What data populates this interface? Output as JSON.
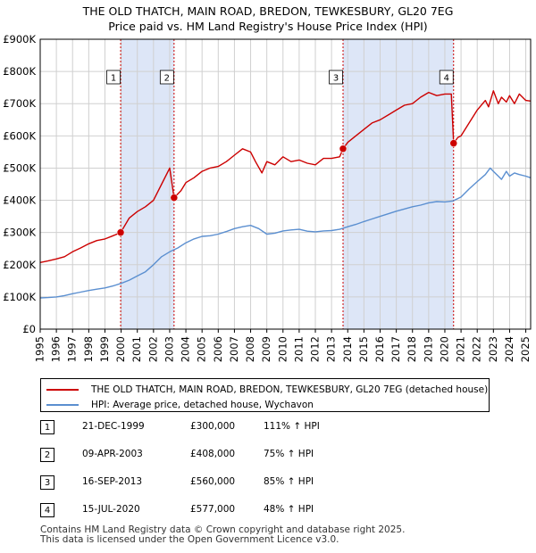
{
  "title_line1": "THE OLD THATCH, MAIN ROAD, BREDON, TEWKESBURY, GL20 7EG",
  "title_line2": "Price paid vs. HM Land Registry's House Price Index (HPI)",
  "colors": {
    "property": "#cc0000",
    "hpi": "#5b8fd0",
    "shade": "#dde6f7",
    "marker": "#cc0000"
  },
  "legend": {
    "property_label": "THE OLD THATCH, MAIN ROAD, BREDON, TEWKESBURY, GL20 7EG (detached house)",
    "hpi_label": "HPI: Average price, detached house, Wychavon"
  },
  "transactions": [
    {
      "num": "1",
      "date": "21-DEC-1999",
      "price": "£300,000",
      "hpi": "111% ↑ HPI"
    },
    {
      "num": "2",
      "date": "09-APR-2003",
      "price": "£408,000",
      "hpi": "75% ↑ HPI"
    },
    {
      "num": "3",
      "date": "16-SEP-2013",
      "price": "£560,000",
      "hpi": "85% ↑ HPI"
    },
    {
      "num": "4",
      "date": "15-JUL-2020",
      "price": "£577,000",
      "hpi": "48% ↑ HPI"
    }
  ],
  "footer_line1": "Contains HM Land Registry data © Crown copyright and database right 2025.",
  "footer_line2": "This data is licensed under the Open Government Licence v3.0.",
  "chart_data": {
    "type": "line",
    "title": "THE OLD THATCH, MAIN ROAD, BREDON, TEWKESBURY, GL20 7EG — Price paid vs. HM Land Registry's House Price Index (HPI)",
    "xlabel": "",
    "ylabel": "",
    "xlim": [
      1995,
      2025.3
    ],
    "ylim": [
      0,
      900000
    ],
    "grid": true,
    "legend_position": "below",
    "y_ticks": [
      0,
      100000,
      200000,
      300000,
      400000,
      500000,
      600000,
      700000,
      800000,
      900000
    ],
    "y_tick_labels": [
      "£0",
      "£100K",
      "£200K",
      "£300K",
      "£400K",
      "£500K",
      "£600K",
      "£700K",
      "£800K",
      "£900K"
    ],
    "x_ticks": [
      1995,
      1996,
      1997,
      1998,
      1999,
      2000,
      2001,
      2002,
      2003,
      2004,
      2005,
      2006,
      2007,
      2008,
      2009,
      2010,
      2011,
      2012,
      2013,
      2014,
      2015,
      2016,
      2017,
      2018,
      2019,
      2020,
      2021,
      2022,
      2023,
      2024,
      2025
    ],
    "shaded_ranges": [
      [
        1999.97,
        2003.27
      ],
      [
        2013.71,
        2020.54
      ]
    ],
    "sale_markers": [
      {
        "label": "1",
        "x": 1999.97,
        "y": 300000
      },
      {
        "label": "2",
        "x": 2003.27,
        "y": 408000
      },
      {
        "label": "3",
        "x": 2013.71,
        "y": 560000
      },
      {
        "label": "4",
        "x": 2020.54,
        "y": 577000
      }
    ],
    "series": [
      {
        "name": "THE OLD THATCH, MAIN ROAD, BREDON, TEWKESBURY, GL20 7EG (detached house)",
        "x": [
          1995.0,
          1995.5,
          1996.0,
          1996.5,
          1997.0,
          1997.5,
          1998.0,
          1998.5,
          1999.0,
          1999.5,
          1999.97,
          2000.5,
          2001.0,
          2001.5,
          2002.0,
          2002.5,
          2003.0,
          2003.27,
          2003.7,
          2004.0,
          2004.5,
          2005.0,
          2005.5,
          2006.0,
          2006.5,
          2007.0,
          2007.5,
          2008.0,
          2008.3,
          2008.7,
          2009.0,
          2009.5,
          2010.0,
          2010.5,
          2011.0,
          2011.5,
          2012.0,
          2012.5,
          2013.0,
          2013.5,
          2013.71,
          2014.0,
          2014.5,
          2015.0,
          2015.5,
          2016.0,
          2016.5,
          2017.0,
          2017.5,
          2018.0,
          2018.5,
          2019.0,
          2019.5,
          2020.0,
          2020.4,
          2020.54,
          2020.8,
          2021.0,
          2021.5,
          2022.0,
          2022.5,
          2022.7,
          2023.0,
          2023.3,
          2023.5,
          2023.8,
          2024.0,
          2024.3,
          2024.6,
          2025.0,
          2025.3
        ],
        "values": [
          207000,
          212000,
          218000,
          225000,
          240000,
          252000,
          265000,
          275000,
          280000,
          290000,
          300000,
          345000,
          365000,
          380000,
          400000,
          450000,
          500000,
          408000,
          430000,
          455000,
          470000,
          490000,
          500000,
          505000,
          520000,
          540000,
          560000,
          550000,
          520000,
          485000,
          520000,
          510000,
          535000,
          520000,
          525000,
          515000,
          510000,
          530000,
          530000,
          535000,
          560000,
          580000,
          600000,
          620000,
          640000,
          650000,
          665000,
          680000,
          695000,
          700000,
          720000,
          735000,
          725000,
          730000,
          730000,
          577000,
          595000,
          600000,
          640000,
          680000,
          710000,
          690000,
          740000,
          700000,
          720000,
          705000,
          725000,
          700000,
          730000,
          710000,
          708000
        ]
      },
      {
        "name": "HPI: Average price, detached house, Wychavon",
        "x": [
          1995.0,
          1995.5,
          1996.0,
          1996.5,
          1997.0,
          1997.5,
          1998.0,
          1998.5,
          1999.0,
          1999.5,
          2000.0,
          2000.5,
          2001.0,
          2001.5,
          2002.0,
          2002.5,
          2003.0,
          2003.5,
          2004.0,
          2004.5,
          2005.0,
          2005.5,
          2006.0,
          2006.5,
          2007.0,
          2007.5,
          2008.0,
          2008.5,
          2009.0,
          2009.5,
          2010.0,
          2010.5,
          2011.0,
          2011.5,
          2012.0,
          2012.5,
          2013.0,
          2013.5,
          2014.0,
          2014.5,
          2015.0,
          2015.5,
          2016.0,
          2016.5,
          2017.0,
          2017.5,
          2018.0,
          2018.5,
          2019.0,
          2019.5,
          2020.0,
          2020.5,
          2021.0,
          2021.5,
          2022.0,
          2022.5,
          2022.8,
          2023.0,
          2023.3,
          2023.5,
          2023.8,
          2024.0,
          2024.3,
          2024.6,
          2025.0,
          2025.3
        ],
        "values": [
          97000,
          98000,
          100000,
          104000,
          110000,
          115000,
          120000,
          124000,
          128000,
          134000,
          142000,
          152000,
          165000,
          178000,
          200000,
          225000,
          240000,
          252000,
          268000,
          280000,
          288000,
          290000,
          295000,
          303000,
          312000,
          318000,
          322000,
          312000,
          295000,
          298000,
          305000,
          308000,
          310000,
          304000,
          302000,
          305000,
          306000,
          310000,
          318000,
          325000,
          334000,
          342000,
          350000,
          358000,
          366000,
          373000,
          380000,
          385000,
          392000,
          396000,
          395000,
          398000,
          410000,
          435000,
          458000,
          480000,
          500000,
          490000,
          475000,
          465000,
          490000,
          475000,
          485000,
          480000,
          475000,
          470000
        ]
      }
    ]
  }
}
